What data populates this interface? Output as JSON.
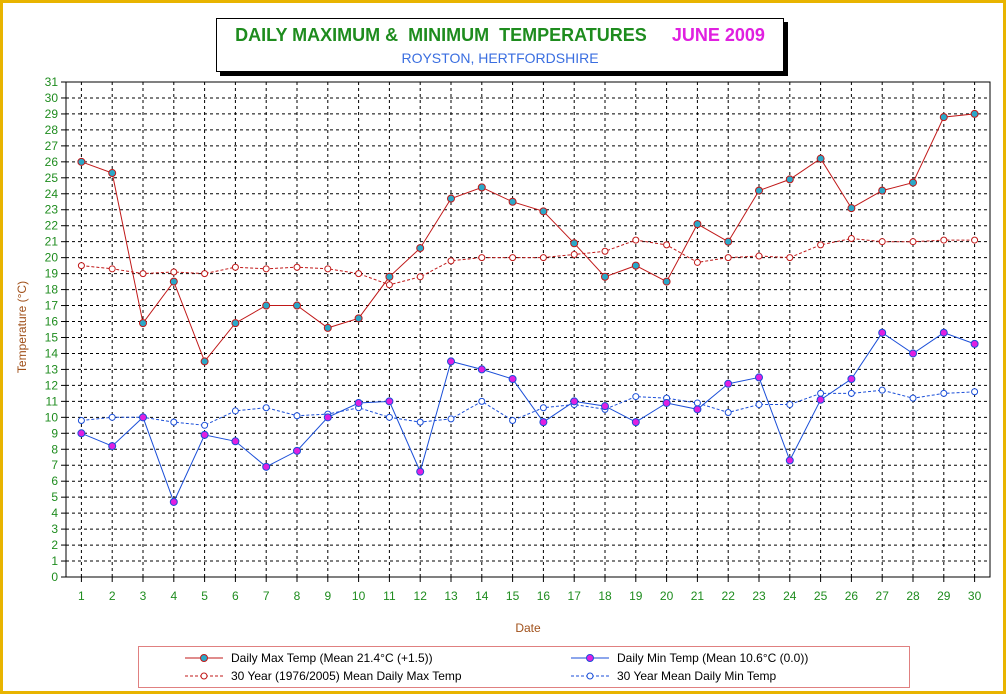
{
  "header": {
    "title": "DAILY MAXIMUM &  MINIMUM  TEMPERATURES",
    "month": "JUNE 2009",
    "subtitle": "ROYSTON, HERTFORDSHIRE"
  },
  "colors": {
    "max": "#c01818",
    "min": "#1a4ed8",
    "max_marker": "#2aa8c8",
    "min_marker": "#e020e0",
    "axis_text": "#1e8c1e",
    "axis_label": "#a0501a",
    "frame": "#e8b400"
  },
  "chart_data": {
    "type": "line",
    "title": "DAILY MAXIMUM &  MINIMUM  TEMPERATURES",
    "subtitle": "ROYSTON, HERTFORDSHIRE",
    "xlabel": "Date",
    "ylabel": "Temperature (°C)",
    "ylim": [
      0,
      31
    ],
    "grid": true,
    "legend_position": "bottom",
    "x": [
      1,
      2,
      3,
      4,
      5,
      6,
      7,
      8,
      9,
      10,
      11,
      12,
      13,
      14,
      15,
      16,
      17,
      18,
      19,
      20,
      21,
      22,
      23,
      24,
      25,
      26,
      27,
      28,
      29,
      30
    ],
    "yticks": [
      0,
      1,
      2,
      3,
      4,
      5,
      6,
      7,
      8,
      9,
      10,
      11,
      12,
      13,
      14,
      15,
      16,
      17,
      18,
      19,
      20,
      21,
      22,
      23,
      24,
      25,
      26,
      27,
      28,
      29,
      30,
      31
    ],
    "series": [
      {
        "name": "Daily Max Temp (Mean 21.4°C (+1.5))",
        "style": "solid",
        "color": "#c01818",
        "marker_fill": "#2aa8c8",
        "values": [
          26.0,
          25.3,
          15.9,
          18.5,
          13.5,
          15.9,
          17.0,
          17.0,
          15.6,
          16.2,
          18.8,
          20.6,
          23.7,
          24.4,
          23.5,
          22.9,
          20.9,
          18.8,
          19.5,
          18.5,
          22.1,
          21.0,
          24.2,
          24.9,
          26.2,
          23.1,
          24.2,
          24.7,
          28.8,
          29.0
        ]
      },
      {
        "name": "Daily Min Temp (Mean 10.6°C (0.0))",
        "style": "solid",
        "color": "#1a4ed8",
        "marker_fill": "#e020e0",
        "values": [
          9.0,
          8.2,
          10.0,
          4.7,
          8.9,
          8.5,
          6.9,
          7.9,
          10.0,
          10.9,
          11.0,
          6.6,
          13.5,
          13.0,
          12.4,
          9.7,
          11.0,
          10.7,
          9.7,
          10.9,
          10.5,
          12.1,
          12.5,
          7.3,
          11.1,
          12.4,
          15.3,
          14.0,
          15.3,
          14.6
        ]
      },
      {
        "name": "30 Year (1976/2005) Mean Daily Max Temp",
        "style": "dashed",
        "color": "#c01818",
        "marker_fill": "#ffffff",
        "values": [
          19.5,
          19.3,
          19.0,
          19.1,
          19.0,
          19.4,
          19.3,
          19.4,
          19.3,
          19.0,
          18.3,
          18.8,
          19.8,
          20.0,
          20.0,
          20.0,
          20.2,
          20.4,
          21.1,
          20.8,
          19.7,
          20.0,
          20.1,
          20.0,
          20.8,
          21.2,
          21.0,
          21.0,
          21.1,
          21.1
        ]
      },
      {
        "name": "30 Year Mean Daily Min Temp",
        "style": "dashed",
        "color": "#1a4ed8",
        "marker_fill": "#ffffff",
        "values": [
          9.8,
          10.0,
          10.0,
          9.7,
          9.5,
          10.4,
          10.6,
          10.1,
          10.2,
          10.6,
          10.0,
          9.7,
          9.9,
          11.0,
          9.8,
          10.6,
          10.8,
          10.5,
          11.3,
          11.2,
          10.9,
          10.3,
          10.8,
          10.8,
          11.5,
          11.5,
          11.7,
          11.2,
          11.5,
          11.6
        ]
      }
    ]
  }
}
